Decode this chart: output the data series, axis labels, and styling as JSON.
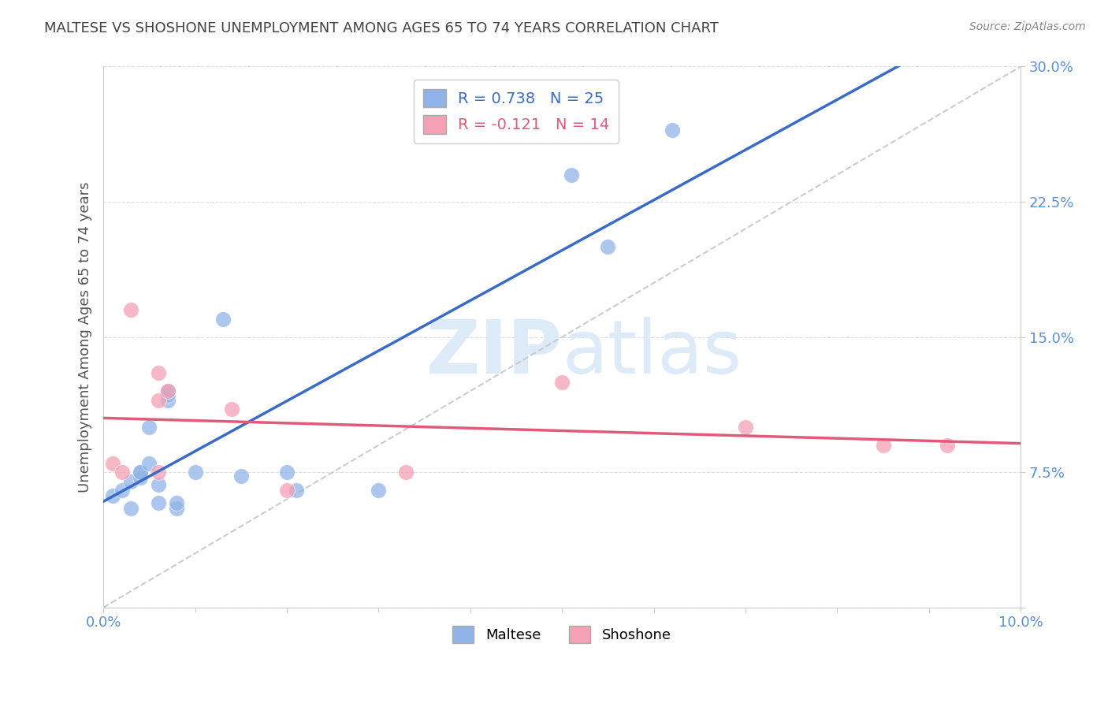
{
  "title": "MALTESE VS SHOSHONE UNEMPLOYMENT AMONG AGES 65 TO 74 YEARS CORRELATION CHART",
  "source": "Source: ZipAtlas.com",
  "ylabel": "Unemployment Among Ages 65 to 74 years",
  "xlim": [
    0.0,
    0.1
  ],
  "ylim": [
    0.0,
    0.3
  ],
  "xticks": [
    0.0,
    0.01,
    0.02,
    0.03,
    0.04,
    0.05,
    0.06,
    0.07,
    0.08,
    0.09,
    0.1
  ],
  "xticklabels_ends": [
    "0.0%",
    "10.0%"
  ],
  "yticks": [
    0.0,
    0.075,
    0.15,
    0.225,
    0.3
  ],
  "yticklabels": [
    "",
    "7.5%",
    "15.0%",
    "22.5%",
    "30.0%"
  ],
  "maltese_R": "0.738",
  "maltese_N": "25",
  "shoshone_R": "-0.121",
  "shoshone_N": "14",
  "maltese_color": "#91b4e8",
  "shoshone_color": "#f4a0b5",
  "maltese_line_color": "#3a6bc7",
  "shoshone_line_color": "#e05a7a",
  "diagonal_line_color": "#cccccc",
  "watermark_color": "#ddeaf8",
  "background_color": "#ffffff",
  "grid_color": "#dddddd",
  "tick_color": "#5b8fd4",
  "maltese_x": [
    0.001,
    0.002,
    0.003,
    0.003,
    0.004,
    0.004,
    0.004,
    0.005,
    0.005,
    0.006,
    0.006,
    0.007,
    0.007,
    0.007,
    0.008,
    0.008,
    0.01,
    0.013,
    0.015,
    0.02,
    0.021,
    0.03,
    0.051,
    0.055,
    0.062
  ],
  "maltese_y": [
    0.062,
    0.065,
    0.055,
    0.07,
    0.075,
    0.072,
    0.075,
    0.08,
    0.1,
    0.068,
    0.058,
    0.115,
    0.118,
    0.12,
    0.055,
    0.058,
    0.075,
    0.16,
    0.073,
    0.075,
    0.065,
    0.065,
    0.24,
    0.2,
    0.265
  ],
  "shoshone_x": [
    0.001,
    0.002,
    0.003,
    0.006,
    0.006,
    0.006,
    0.007,
    0.014,
    0.02,
    0.033,
    0.05,
    0.07,
    0.085,
    0.092
  ],
  "shoshone_y": [
    0.08,
    0.075,
    0.165,
    0.13,
    0.115,
    0.075,
    0.12,
    0.11,
    0.065,
    0.075,
    0.125,
    0.1,
    0.09,
    0.09
  ]
}
